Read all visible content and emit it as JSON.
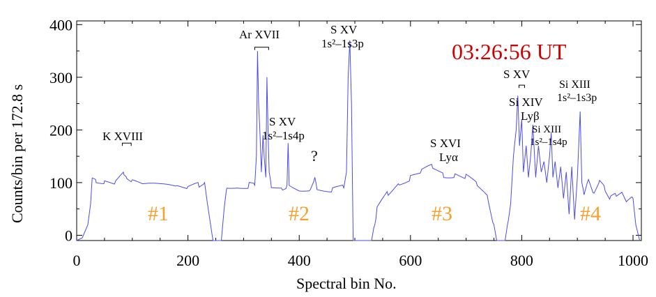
{
  "chart_data": {
    "type": "line",
    "title": "03:26:56 UT",
    "title_color": "#cc0000",
    "line_color": "#4a4aee",
    "region_color": "#f5a030",
    "xlabel": "Spectral bin No.",
    "ylabel": "Counts/bin per  172.8 s",
    "xlim": [
      0,
      1015
    ],
    "ylim": [
      -10,
      407
    ],
    "xticks": [
      0,
      200,
      400,
      600,
      800,
      1000
    ],
    "yticks": [
      0,
      100,
      200,
      300,
      400
    ],
    "regions": [
      "#1",
      "#2",
      "#3",
      "#4"
    ],
    "annotations": [
      "K XVIII",
      "Ar XVII",
      "S XV",
      "1s²–1s4p",
      "?",
      "S XV",
      "1s²–1s3p",
      "S XVI",
      "Lyα",
      "S XV",
      "Si XIV",
      "Lyβ",
      "Si XIII",
      "1s²–1s4p",
      "Si XIII",
      "1s²–1s3p"
    ],
    "x": [
      0,
      10,
      20,
      25,
      28,
      35,
      50,
      70,
      85,
      90,
      100,
      120,
      150,
      180,
      200,
      220,
      230,
      235,
      245,
      260,
      265,
      270,
      290,
      310,
      320,
      323,
      325,
      327,
      330,
      332,
      335,
      337,
      340,
      342,
      344,
      346,
      350,
      370,
      378,
      380,
      382,
      400,
      420,
      428,
      432,
      460,
      480,
      485,
      488,
      491,
      494,
      497,
      530,
      540,
      560,
      580,
      600,
      620,
      640,
      660,
      680,
      700,
      720,
      740,
      750,
      755,
      770,
      780,
      785,
      790,
      793,
      796,
      800,
      803,
      808,
      812,
      816,
      820,
      825,
      830,
      835,
      840,
      845,
      850,
      853,
      856,
      860,
      865,
      870,
      875,
      880,
      885,
      890,
      895,
      900,
      905,
      908,
      912,
      920,
      930,
      940,
      950,
      960,
      970,
      980,
      990,
      1000,
      1005,
      1012
    ],
    "y": [
      -10,
      -5,
      20,
      60,
      110,
      105,
      100,
      98,
      115,
      110,
      100,
      95,
      92,
      90,
      88,
      95,
      100,
      60,
      -10,
      -10,
      50,
      95,
      92,
      95,
      95,
      150,
      350,
      250,
      180,
      120,
      190,
      150,
      110,
      300,
      200,
      120,
      95,
      90,
      95,
      175,
      100,
      90,
      88,
      110,
      90,
      88,
      90,
      120,
      300,
      370,
      250,
      -10,
      -10,
      50,
      80,
      100,
      110,
      120,
      130,
      115,
      115,
      110,
      95,
      70,
      20,
      -10,
      -10,
      60,
      150,
      200,
      265,
      170,
      220,
      120,
      170,
      110,
      150,
      210,
      110,
      170,
      120,
      140,
      100,
      150,
      195,
      110,
      140,
      90,
      130,
      70,
      120,
      40,
      130,
      30,
      110,
      235,
      100,
      80,
      110,
      80,
      100,
      90,
      70,
      75,
      85,
      60,
      70,
      20,
      -10
    ]
  }
}
